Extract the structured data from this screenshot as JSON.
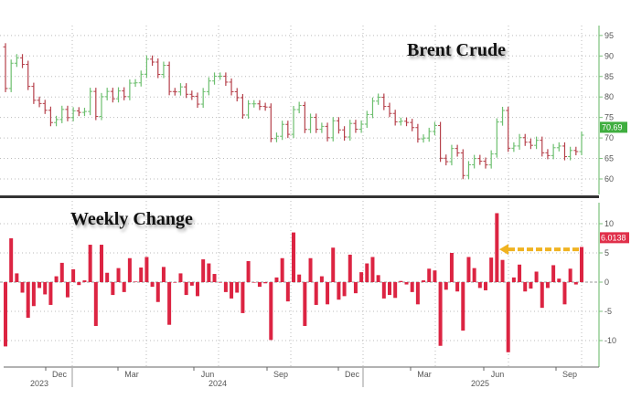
{
  "chart_data": [
    {
      "type": "ohlc",
      "title": "Brent Crude",
      "y_ticks": [
        60,
        65,
        70,
        75,
        80,
        85,
        90,
        95
      ],
      "ylim": [
        56,
        97
      ],
      "grid": true,
      "last_value_label": "70.69",
      "closes": [
        92.22,
        82.07,
        88.23,
        89.55,
        87.94,
        82.58,
        79.19,
        78.4,
        76.75,
        73.76,
        74.5,
        76.96,
        74.96,
        76.61,
        76.23,
        76.46,
        81.35,
        75.25,
        80.07,
        81.35,
        79.56,
        81.47,
        80.09,
        83.37,
        83.45,
        85.54,
        89.22,
        88.51,
        85.5,
        87.72,
        81.32,
        81.24,
        82.46,
        80.65,
        80.17,
        78.25,
        81.3,
        83.9,
        85.07,
        85.07,
        83.62,
        81.28,
        79.82,
        75.6,
        78.32,
        78.32,
        77.69,
        77.54,
        69.86,
        70.42,
        73.31,
        70.89,
        76.92,
        77.92,
        72.08,
        75.04,
        72.11,
        72.83,
        70.06,
        74.19,
        71.97,
        70.24,
        73.54,
        72.14,
        73.37,
        75.72,
        78.98,
        79.93,
        77.69,
        75.98,
        73.93,
        74.08,
        73.78,
        72.53,
        69.77,
        69.98,
        71.59,
        73.02,
        65.06,
        64.22,
        67.43,
        66.35,
        60.84,
        63.46,
        64.98,
        64.33,
        63.43,
        66.09,
        73.89,
        76.7,
        67.5,
        68.04,
        70.08,
        68.96,
        68.2,
        69.43,
        66.38,
        65.71,
        67.62,
        68.03,
        65.45,
        66.95,
        66.68,
        70.69
      ],
      "colors": {
        "up": "#6dbf6f",
        "down": "#b5404a",
        "axis": "#7cc27c",
        "label_bg": "#3fae3f"
      }
    },
    {
      "type": "bar",
      "title": "Weekly Change",
      "y_ticks": [
        -10,
        -5,
        0,
        5,
        10
      ],
      "ylim": [
        -14.5,
        14
      ],
      "grid": true,
      "last_value_label": "6.0138",
      "values": [
        -11,
        7.5,
        1.5,
        -1.8,
        -6.1,
        -4.1,
        -1,
        -2.1,
        -3.9,
        1.0,
        3.3,
        -2.6,
        2.2,
        -0.5,
        0.3,
        6.4,
        -7.5,
        6.4,
        1.6,
        -2.2,
        2.4,
        -1.7,
        4.1,
        0.1,
        2.5,
        4.3,
        -0.8,
        -3.4,
        2.6,
        -7.3,
        -0.1,
        1.5,
        -2.2,
        -0.6,
        -2.4,
        3.9,
        3.2,
        1.4,
        0,
        -1.7,
        -2.8,
        -1.8,
        -5.3,
        3.6,
        0,
        -0.8,
        -0.2,
        -9.9,
        0.8,
        4.1,
        -3.3,
        8.5,
        1.3,
        -7.5,
        4.1,
        -3.9,
        1.0,
        -3.8,
        5.9,
        -3.0,
        -2.4,
        4.7,
        -1.9,
        1.7,
        3.2,
        4.3,
        1.2,
        -2.8,
        -2.2,
        -2.7,
        0.2,
        -0.4,
        -1.7,
        -3.8,
        0.3,
        2.3,
        2.0,
        -10.9,
        -1.3,
        5.0,
        -1.6,
        -8.3,
        4.3,
        2.4,
        -1.0,
        -1.4,
        4.2,
        11.8,
        3.8,
        -12.0,
        0.8,
        3.0,
        -1.6,
        -1.1,
        1.8,
        -4.4,
        -1.0,
        2.9,
        0.6,
        -3.8,
        2.3,
        -0.4,
        6.0138
      ],
      "annotation": "arrow from latest value back to June 2025 level",
      "colors": {
        "bar": "#dc2442",
        "arrow": "#f0b321",
        "label_bg": "#e0304a"
      }
    }
  ],
  "x_axis": {
    "month_labels": [
      "Dec",
      "Mar",
      "Jun",
      "Sep",
      "Dec",
      "Mar",
      "Jun",
      "Sep"
    ],
    "year_labels": [
      "2023",
      "2024",
      "2025"
    ]
  }
}
